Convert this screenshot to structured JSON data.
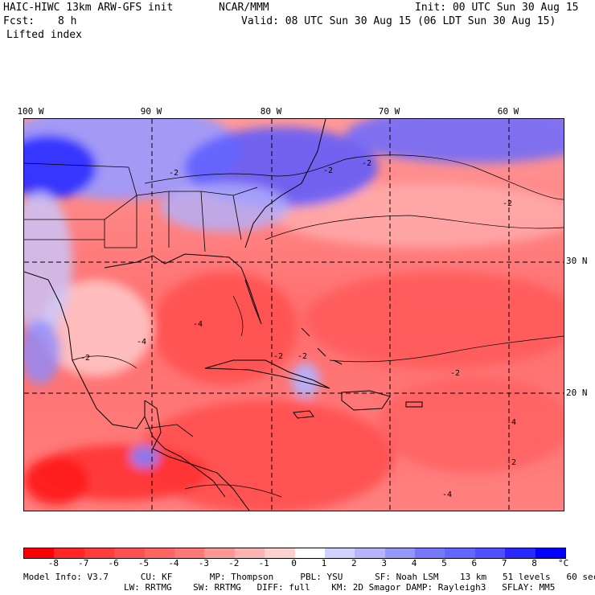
{
  "header": {
    "model": "HAIC-HIWC 13km ARW-GFS init",
    "org": "NCAR/MMM",
    "init": "Init: 00 UTC Sun 30 Aug 15",
    "fcst_label": "Fcst:",
    "fcst_value": "8 h",
    "valid": "Valid: 08 UTC Sun 30 Aug 15 (06 LDT Sun 30 Aug 15)",
    "field": "Lifted index"
  },
  "axes": {
    "lon_labels": [
      "100 W",
      "90 W",
      "80 W",
      "70 W",
      "60 W"
    ],
    "lat_labels": [
      "30 N",
      "20 N"
    ]
  },
  "colorbar": {
    "labels": [
      "-8",
      "-7",
      "-6",
      "-5",
      "-4",
      "-3",
      "-2",
      "-1",
      "0",
      "1",
      "2",
      "3",
      "4",
      "5",
      "6",
      "7",
      "8"
    ],
    "unit": "°C",
    "colors": [
      "#ff0000",
      "#ff2626",
      "#ff3c3c",
      "#ff5050",
      "#ff6464",
      "#ff7878",
      "#ff9696",
      "#ffb4b4",
      "#ffd2d2",
      "#ffffff",
      "#d2d2ff",
      "#b4b4ff",
      "#9696ff",
      "#7878ff",
      "#6464ff",
      "#5050ff",
      "#2828ff",
      "#0000ff"
    ]
  },
  "contour_labels": [
    "-2",
    "-2",
    "-2",
    "-2",
    "-2",
    "-2",
    "-2",
    "-4",
    "-4",
    "-4",
    "-4",
    "-2",
    "-2"
  ],
  "footer": {
    "line1": "Model Info: V3.7      CU: KF       MP: Thompson     PBL: YSU      SF: Noah LSM    13 km   51 levels   60 sec",
    "line2": "LW: RRTMG    SW: RRTMG   DIFF: full    KM: 2D Smagor DAMP: Rayleigh3   SFLAY: MM5"
  }
}
